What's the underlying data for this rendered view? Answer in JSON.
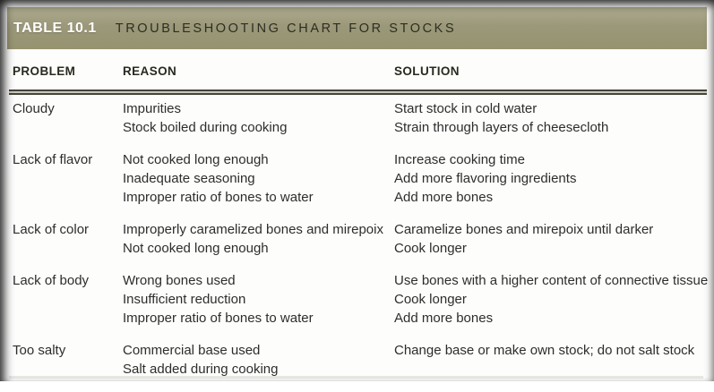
{
  "table": {
    "label": "TABLE 10.1",
    "title": "TROUBLESHOOTING CHART FOR STOCKS",
    "columns": [
      "PROBLEM",
      "REASON",
      "SOLUTION"
    ],
    "rows": [
      {
        "problem": "Cloudy",
        "reasons": [
          "Impurities",
          "Stock boiled during cooking"
        ],
        "solutions": [
          "Start stock in cold water",
          "Strain through layers of cheesecloth"
        ]
      },
      {
        "problem": "Lack of flavor",
        "reasons": [
          "Not cooked long enough",
          "Inadequate seasoning",
          "Improper ratio of bones to water"
        ],
        "solutions": [
          "Increase cooking time",
          "Add more flavoring ingredients",
          "Add more bones"
        ]
      },
      {
        "problem": "Lack of color",
        "reasons": [
          "Improperly caramelized bones and mirepoix",
          "Not cooked long enough"
        ],
        "solutions": [
          "Caramelize bones and mirepoix until darker",
          "Cook longer"
        ]
      },
      {
        "problem": "Lack of body",
        "reasons": [
          "Wrong bones used",
          "Insufficient reduction",
          "Improper ratio of bones to water"
        ],
        "solutions": [
          "Use bones with a higher content of connective tissue",
          "Cook longer",
          "Add more bones"
        ]
      },
      {
        "problem": "Too salty",
        "reasons": [
          "Commercial base used",
          "Salt added during cooking"
        ],
        "solutions": [
          "Change base or make own stock; do not salt stock"
        ]
      }
    ],
    "colors": {
      "header_bar": "#9b987a",
      "header_bar_top": "#aeab8f",
      "label_text": "#ffffff",
      "title_text": "#2e2d20",
      "body_text": "#2d2d2b",
      "rule_dark": "#45443a"
    }
  }
}
